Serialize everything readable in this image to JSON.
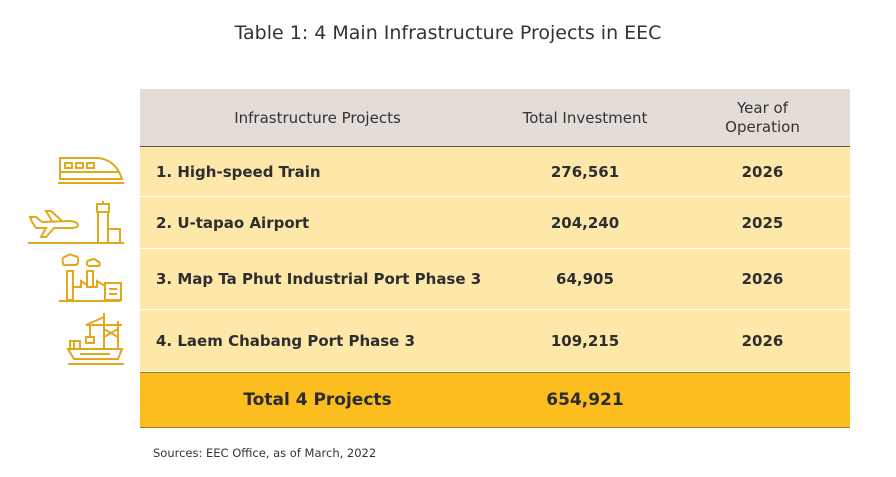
{
  "title": "Table 1: 4 Main Infrastructure Projects in EEC",
  "header": {
    "project": "Infrastructure Projects",
    "investment": "Total Investment",
    "year_line1": "Year of",
    "year_line2": "Operation"
  },
  "rows": [
    {
      "project": "1. High-speed Train",
      "investment": "276,561",
      "year": "2026",
      "icon": "train-icon"
    },
    {
      "project": "2. U-tapao Airport",
      "investment": "204,240",
      "year": "2025",
      "icon": "airport-icon"
    },
    {
      "project": "3. Map Ta Phut Industrial Port Phase 3",
      "investment": "64,905",
      "year": "2026",
      "icon": "factory-icon"
    },
    {
      "project": "4. Laem Chabang Port Phase 3",
      "investment": "109,215",
      "year": "2026",
      "icon": "port-crane-icon"
    }
  ],
  "total": {
    "label": "Total 4 Projects",
    "investment": "654,921"
  },
  "source": "Sources:  EEC Office, as of March, 2022",
  "colors": {
    "header_bg": "#e3dcd7",
    "row_bg": "#fde8aa",
    "total_bg": "#fcbe1e",
    "icon": "#e2a81c"
  }
}
